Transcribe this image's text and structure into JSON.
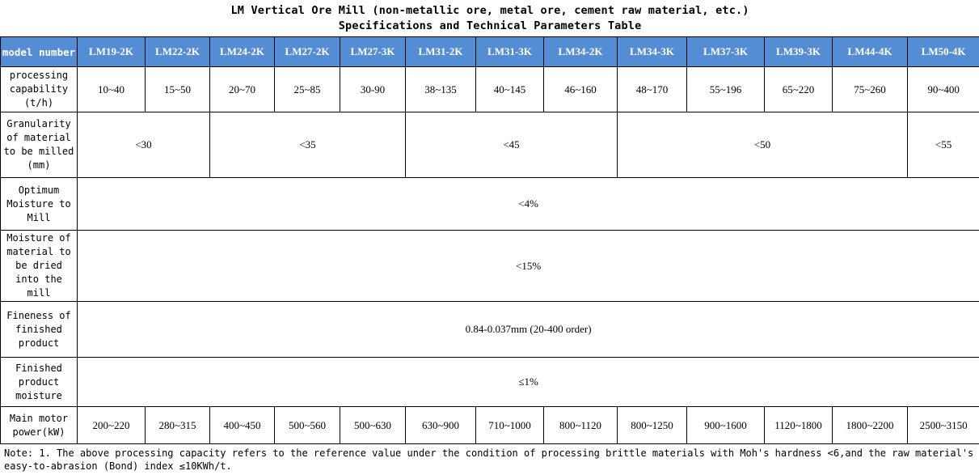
{
  "title": {
    "line1": "LM Vertical Ore Mill (non-metallic ore, metal ore, cement raw material, etc.)",
    "line2": "Specifications and Technical Parameters Table"
  },
  "header": {
    "label": "model number",
    "models": [
      "LM19-2K",
      "LM22-2K",
      "LM24-2K",
      "LM27-2K",
      "LM27-3K",
      "LM31-2K",
      "LM31-3K",
      "LM34-2K",
      "LM34-3K",
      "LM37-3K",
      "LM39-3K",
      "LM44-4K",
      "LM50-4K"
    ]
  },
  "capability": {
    "label": "processing capability (t/h)",
    "values": [
      "10~40",
      "15~50",
      "20~70",
      "25~85",
      "30-90",
      "38~135",
      "40~145",
      "46~160",
      "48~170",
      "55~196",
      "65~220",
      "75~260",
      "90~400"
    ]
  },
  "granularity": {
    "label": "Granularity of material to be milled (mm)",
    "groups": [
      "<30",
      "<35",
      "<45",
      "<50",
      "<55"
    ]
  },
  "optimum_moisture": {
    "label": "Optimum Moisture to Mill",
    "value": "<4%"
  },
  "dried_moisture": {
    "label": "Moisture of material to be dried into the mill",
    "value": "<15%"
  },
  "fineness": {
    "label": "Fineness of finished product",
    "value": "0.84-0.037mm (20-400 order)"
  },
  "product_moisture": {
    "label": "Finished product moisture",
    "value": "≤1%"
  },
  "motor_power": {
    "label": "Main motor power(kW)",
    "values": [
      "200~220",
      "280~315",
      "400~450",
      "500~560",
      "500~630",
      "630~900",
      "710~1000",
      "800~1120",
      "800~1250",
      "900~1600",
      "1120~1800",
      "1800~2200",
      "2500~3150"
    ]
  },
  "note": "Note: 1. The above processing capacity refers to the reference value under the condition of processing brittle materials with Moh's hardness <6,and the raw material's easy-to-abrasion (Bond) index ≤10KWh/t.",
  "colors": {
    "header_bg": "#548dd4",
    "header_text": "#ffffff",
    "border": "#000000"
  }
}
